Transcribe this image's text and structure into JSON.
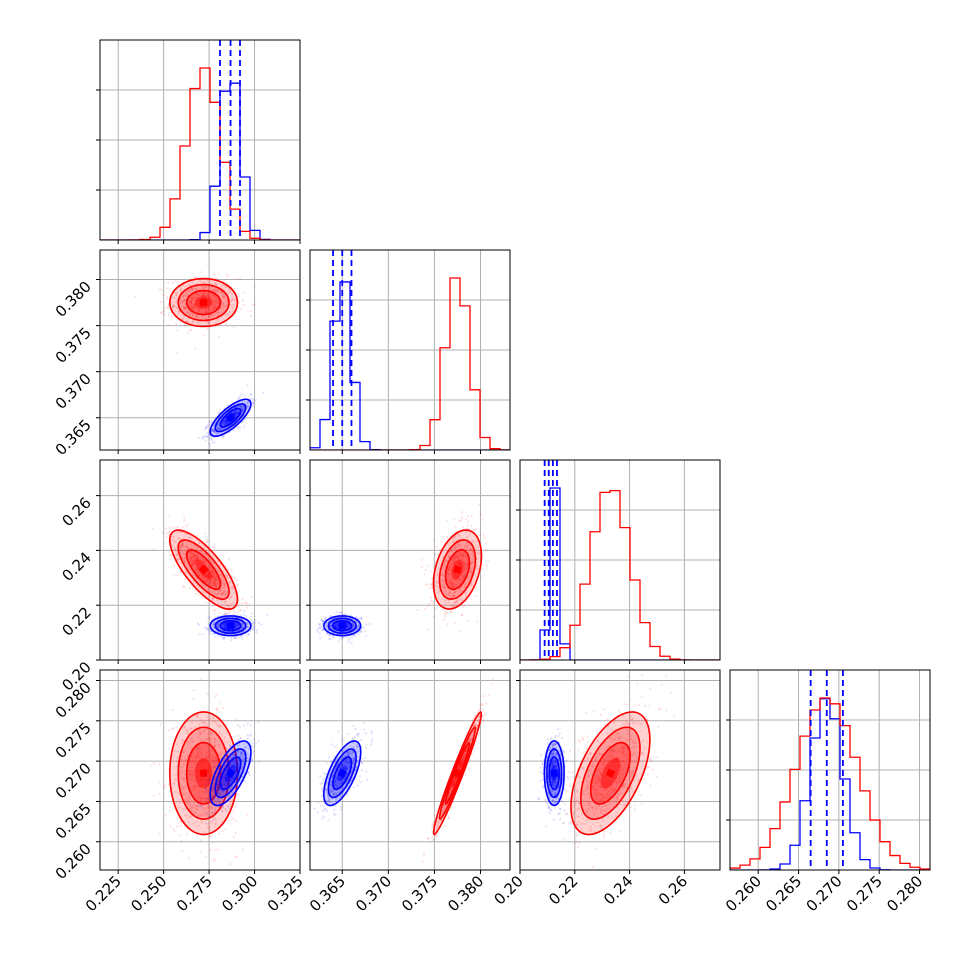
{
  "chart_data": {
    "type": "scatter",
    "subtype": "corner-plot",
    "parameters": 4,
    "series": [
      {
        "color": "#ff0000",
        "dist": [
          {
            "mean": 0.272,
            "sd": 0.0093
          },
          {
            "mean": 0.3775,
            "sd": 0.0013
          },
          {
            "mean": 0.233,
            "sd": 0.0072
          },
          {
            "mean": 0.2685,
            "sd": 0.0038
          }
        ]
      },
      {
        "color": "#0000ff",
        "dist": [
          {
            "mean": 0.2868,
            "sd": 0.0056
          },
          {
            "mean": 0.365,
            "sd": 0.001
          },
          {
            "mean": 0.2125,
            "sd": 0.0018
          },
          {
            "mean": 0.2685,
            "sd": 0.002
          }
        ]
      }
    ],
    "quantile_lines": [
      [
        0.281,
        0.2868,
        0.292
      ],
      [
        0.364,
        0.365,
        0.366
      ],
      [
        0.209,
        0.2105,
        0.212,
        0.2135
      ],
      [
        0.2665,
        0.2685,
        0.2705
      ]
    ],
    "axes": [
      {
        "range": [
          0.215,
          0.325
        ],
        "ticks": [
          "0.225",
          "0.250",
          "0.275",
          "0.300",
          "0.325"
        ]
      },
      {
        "range": [
          0.3615,
          0.3832
        ],
        "ticks": [
          "0.365",
          "0.370",
          "0.375",
          "0.380"
        ]
      },
      {
        "range": [
          0.2,
          0.273
        ],
        "ticks": [
          "0.20",
          "0.22",
          "0.24",
          "0.26"
        ]
      },
      {
        "range": [
          0.2565,
          0.2813
        ],
        "ticks": [
          "0.260",
          "0.265",
          "0.270",
          "0.275",
          "0.280"
        ]
      }
    ],
    "grid": true,
    "correlations": {
      "red": {
        "2-3": 0.3,
        "3-1": -0.75,
        "3-2": 0.35,
        "4-2": 0.97,
        "4-3": 0.55
      },
      "blue": {
        "2-1": 0.75,
        "4-1": 0.65,
        "4-2": 0.65
      }
    }
  }
}
